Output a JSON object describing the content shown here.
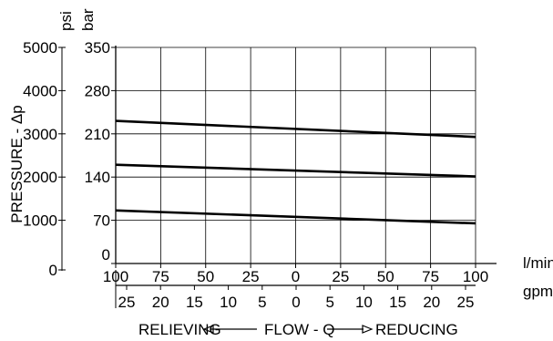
{
  "chart_data": {
    "type": "line",
    "x_axis": {
      "label_primary_unit": "l/min",
      "label_secondary_unit": "gpm",
      "primary_ticks": [
        "100",
        "75",
        "50",
        "25",
        "0",
        "25",
        "50",
        "75",
        "100"
      ],
      "secondary_ticks": [
        "25",
        "20",
        "15",
        "10",
        "5",
        "0",
        "5",
        "10",
        "15",
        "20",
        "25"
      ],
      "direction_label_left": "RELIEVING",
      "direction_label_center": "FLOW - Q",
      "direction_label_right": "REDUCING",
      "range": [
        -100,
        100
      ]
    },
    "y_axis": {
      "label": "PRESSURE - Δp",
      "bar_unit": "bar",
      "psi_unit": "psi",
      "bar_ticks": [
        "0",
        "70",
        "140",
        "210",
        "280",
        "350"
      ],
      "psi_ticks": [
        "0",
        "1000",
        "2000",
        "3000",
        "4000",
        "5000"
      ],
      "range_bar": [
        0,
        350
      ]
    },
    "grid": true,
    "series": [
      {
        "x": [
          -100,
          100
        ],
        "y": [
          231,
          205
        ]
      },
      {
        "x": [
          -100,
          100
        ],
        "y": [
          160,
          141
        ]
      },
      {
        "x": [
          -100,
          100
        ],
        "y": [
          86,
          65
        ]
      }
    ]
  }
}
